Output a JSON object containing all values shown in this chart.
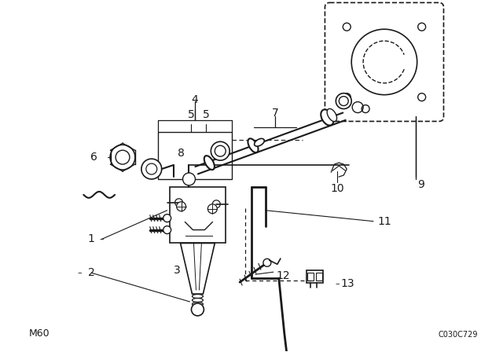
{
  "bg_color": "#ffffff",
  "line_color": "#1a1a1a",
  "bottom_left_text": "M60",
  "bottom_right_text": "C030C729",
  "figsize": [
    6.4,
    4.48
  ],
  "dpi": 100
}
